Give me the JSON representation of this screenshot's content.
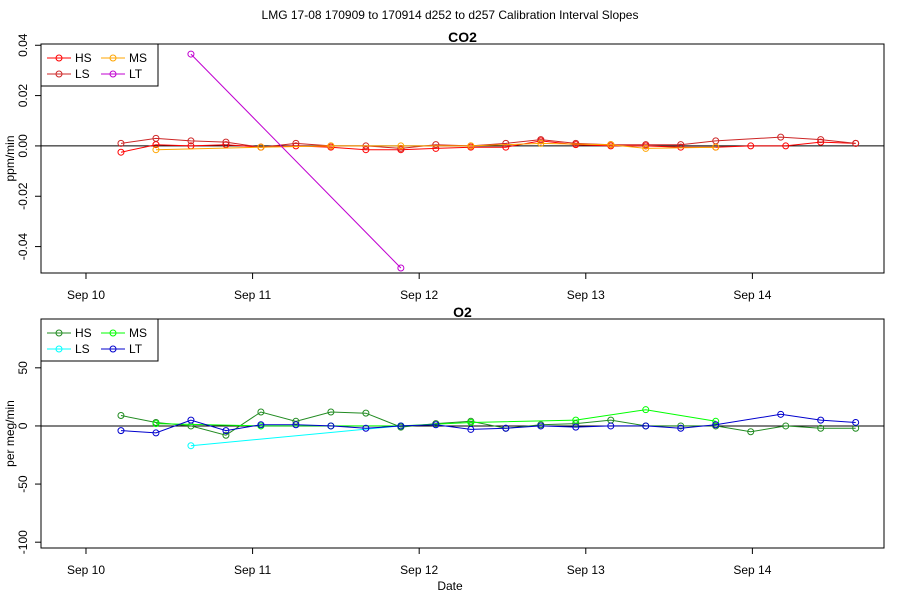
{
  "figure": {
    "title": "LMG   17-08    170909 to 170914    d252 to d257   Calibration Interval Slopes",
    "xlabel": "Date"
  },
  "chart_data": [
    {
      "type": "line",
      "title": "CO2",
      "ylabel": "ppm/min",
      "xlim": [
        -0.27,
        4.79
      ],
      "ylim": [
        -0.0505,
        0.0405
      ],
      "yticks": [
        -0.04,
        -0.02,
        0.0,
        0.02,
        0.04
      ],
      "ytick_labels": [
        "-0.04",
        "-0.02",
        "0.00",
        "0.02",
        "0.04"
      ],
      "xticks": [
        0,
        1,
        2,
        3,
        4
      ],
      "xtick_labels": [
        "Sep 10",
        "Sep 11",
        "Sep 12",
        "Sep 13",
        "Sep 14"
      ],
      "hline": 0,
      "legend": {
        "position": "top-left",
        "columns": 2,
        "order": [
          "HS",
          "LS",
          "MS",
          "LT"
        ]
      },
      "series": [
        {
          "name": "HS",
          "color": "#ff0000",
          "x": [
            0.21,
            0.42,
            0.63,
            0.84,
            1.05,
            1.26,
            1.47,
            1.68,
            1.89,
            2.1,
            2.31,
            2.52,
            2.73,
            2.94,
            3.15,
            3.36,
            3.57,
            3.78,
            3.99,
            4.2,
            4.41,
            4.62
          ],
          "y": [
            -0.0025,
            0.0005,
            0.0,
            0.0005,
            -0.0005,
            0.0,
            -0.0005,
            -0.0015,
            -0.0015,
            -0.001,
            -0.0005,
            -0.0005,
            0.002,
            0.0005,
            0.0,
            0.0,
            -0.0005,
            -0.0005,
            0.0,
            0.0,
            0.0015,
            0.001
          ]
        },
        {
          "name": "LS",
          "color": "#cd2626",
          "x": [
            0.21,
            0.42,
            0.63,
            0.84,
            1.05,
            1.26,
            1.47,
            1.68,
            1.89,
            2.1,
            2.31,
            2.52,
            2.73,
            2.94,
            3.15,
            3.36,
            3.57,
            3.78,
            4.17,
            4.41,
            4.62
          ],
          "y": [
            0.001,
            0.003,
            0.002,
            0.0015,
            -0.0005,
            0.001,
            0.0,
            0.0,
            -0.001,
            0.0005,
            0.0,
            0.001,
            0.0025,
            0.001,
            0.0005,
            0.0005,
            0.0005,
            0.002,
            0.0035,
            0.0025,
            0.001
          ]
        },
        {
          "name": "MS",
          "color": "#ffa500",
          "x": [
            0.42,
            1.05,
            1.47,
            1.89,
            2.31,
            2.73,
            3.15,
            3.36,
            3.78
          ],
          "y": [
            -0.0015,
            -0.0005,
            0.0,
            0.0,
            0.0,
            0.001,
            0.0005,
            -0.001,
            -0.0005
          ]
        },
        {
          "name": "LT",
          "color": "#c000d0",
          "x": [
            0.63,
            1.89
          ],
          "y": [
            0.0365,
            -0.0485
          ]
        }
      ]
    },
    {
      "type": "line",
      "title": "O2",
      "ylabel": "per meg/min",
      "xlim": [
        -0.27,
        4.79
      ],
      "ylim": [
        -105,
        92
      ],
      "yticks": [
        -100,
        -50,
        0,
        50
      ],
      "ytick_labels": [
        "-100",
        "-50",
        "0",
        "50"
      ],
      "xticks": [
        0,
        1,
        2,
        3,
        4
      ],
      "xtick_labels": [
        "Sep 10",
        "Sep 11",
        "Sep 12",
        "Sep 13",
        "Sep 14"
      ],
      "hline": 0,
      "legend": {
        "position": "top-left",
        "columns": 2,
        "order": [
          "HS",
          "LS",
          "MS",
          "LT"
        ]
      },
      "series": [
        {
          "name": "HS",
          "color": "#228b22",
          "x": [
            0.21,
            0.42,
            0.63,
            0.84,
            1.05,
            1.26,
            1.47,
            1.68,
            1.89,
            2.1,
            2.31,
            2.52,
            2.73,
            2.94,
            3.15,
            3.36,
            3.57,
            3.78,
            3.99,
            4.2,
            4.41,
            4.62
          ],
          "y": [
            9,
            3,
            0,
            -8,
            12,
            4,
            12,
            11,
            -1,
            2,
            4,
            -2,
            1,
            2,
            5,
            0,
            0,
            0,
            -5,
            0,
            -2,
            -2
          ]
        },
        {
          "name": "LS",
          "color": "#00ffff",
          "x": [
            0.63,
            1.89
          ],
          "y": [
            -17,
            0
          ]
        },
        {
          "name": "MS",
          "color": "#00ff00",
          "x": [
            0.42,
            1.05,
            1.47,
            1.89,
            2.31,
            2.94,
            3.36,
            3.78
          ],
          "y": [
            2,
            0,
            0,
            0,
            3,
            5,
            14,
            4
          ]
        },
        {
          "name": "LT",
          "color": "#0000cd",
          "x": [
            0.21,
            0.42,
            0.63,
            0.84,
            1.05,
            1.26,
            1.47,
            1.68,
            1.89,
            2.1,
            2.31,
            2.52,
            2.73,
            2.94,
            3.15,
            3.36,
            3.57,
            3.78,
            4.17,
            4.41,
            4.62
          ],
          "y": [
            -4,
            -6,
            5,
            -4,
            1,
            1,
            0,
            -2,
            0,
            1,
            -3,
            -2,
            0,
            -1,
            0,
            0,
            -2,
            1,
            10,
            5,
            3
          ]
        }
      ]
    }
  ]
}
